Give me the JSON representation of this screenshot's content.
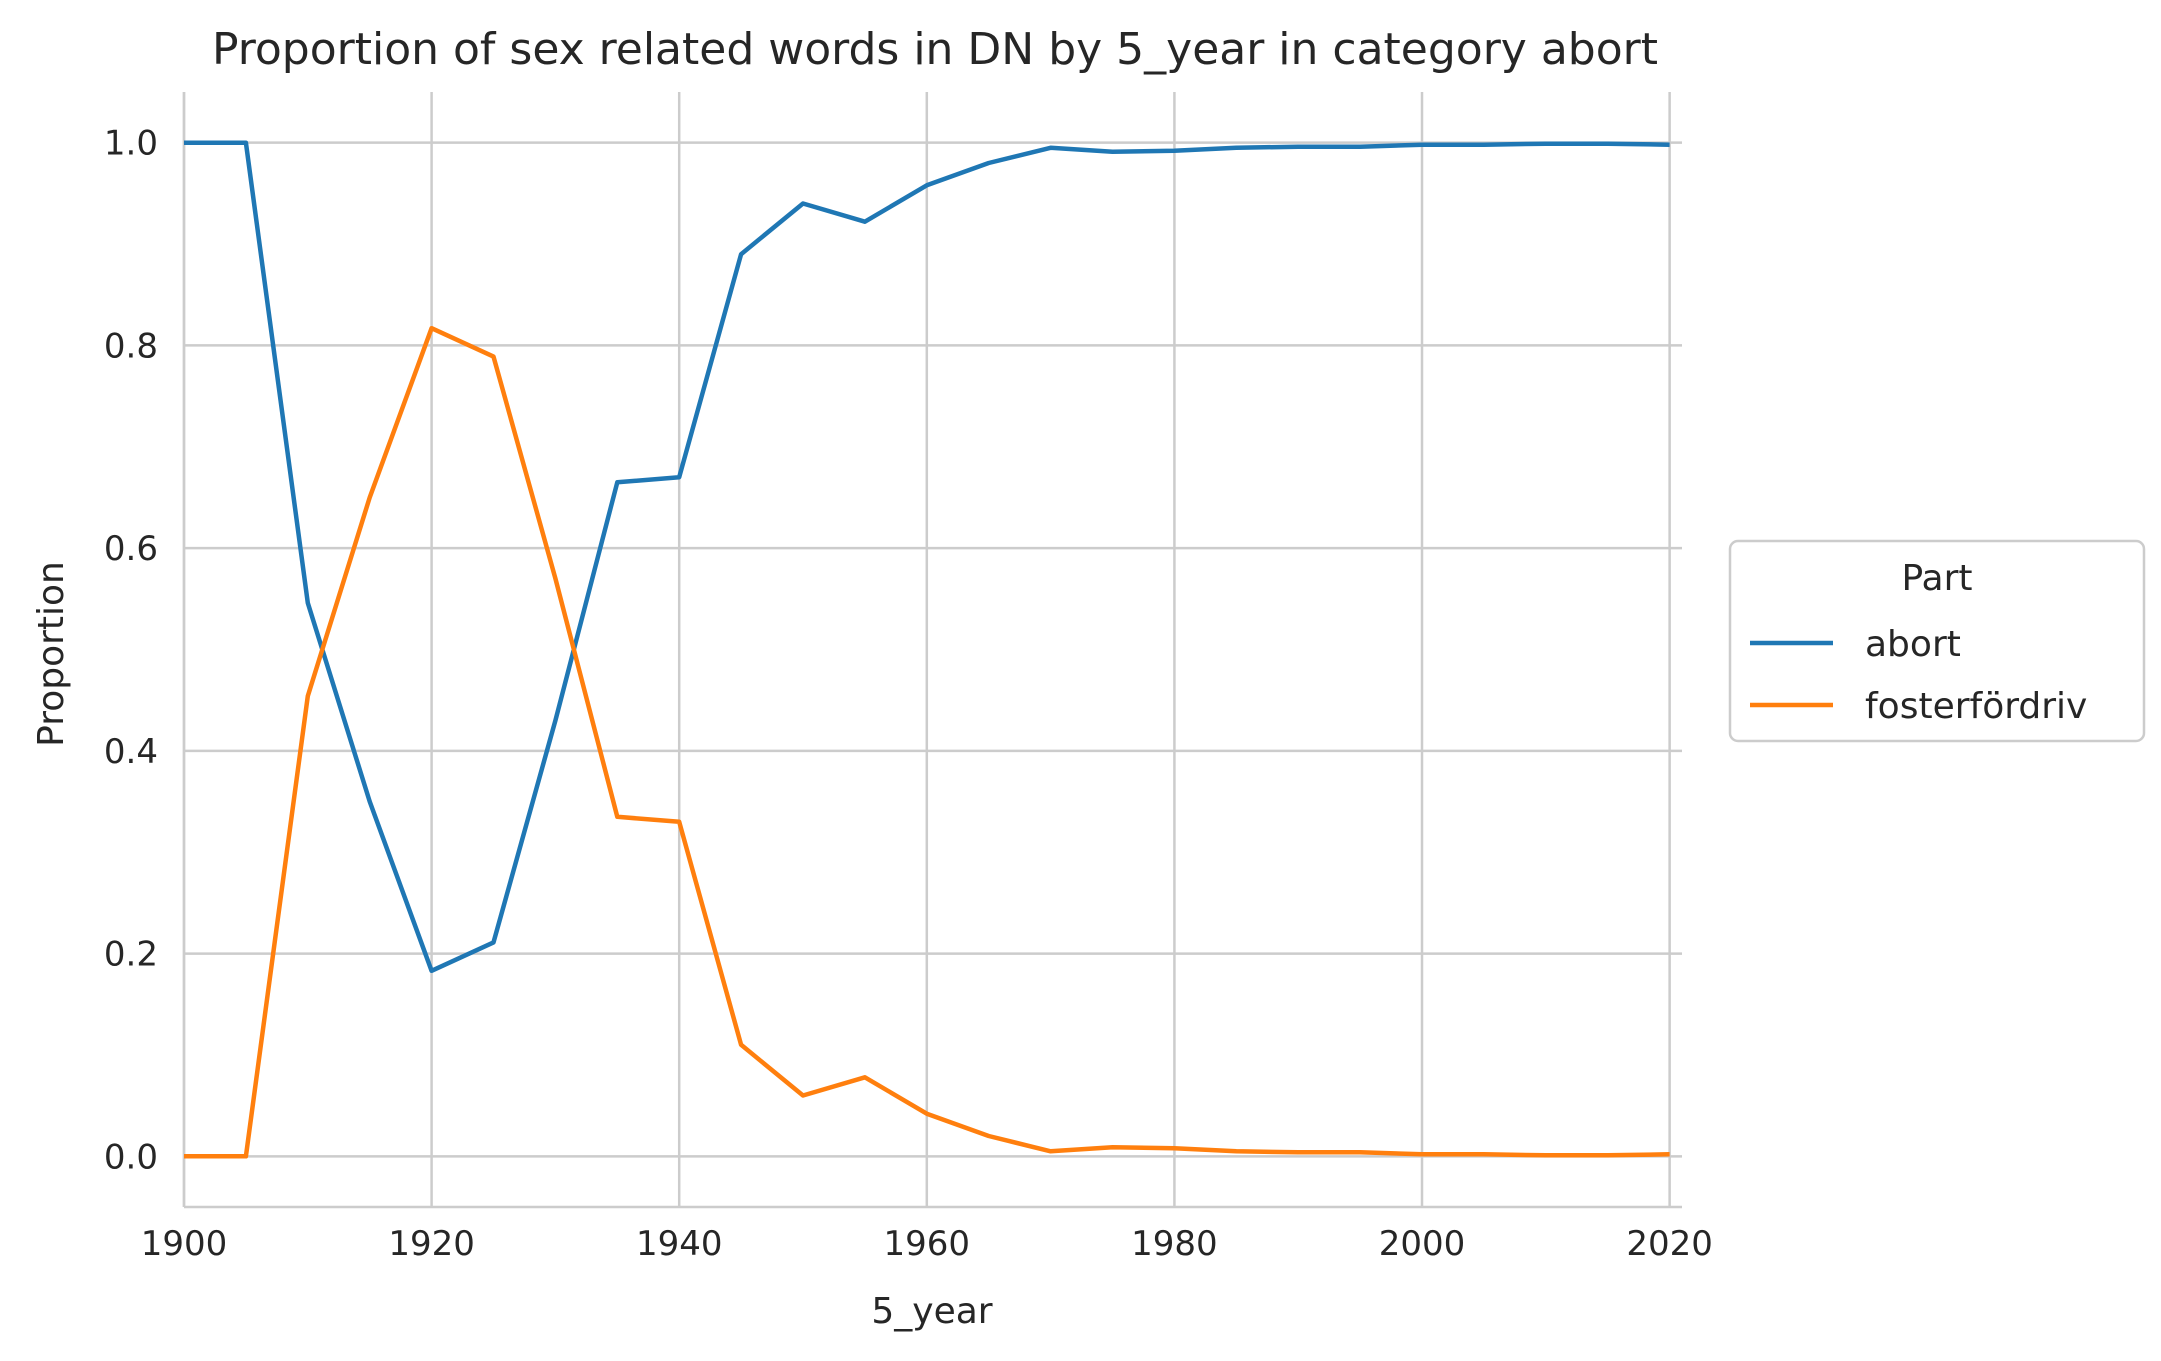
{
  "chart_data": {
    "type": "line",
    "title": "Proportion of sex related words in DN by 5_year in category abort",
    "xlabel": "5_year",
    "ylabel": "Proportion",
    "xlim": [
      1900,
      2021
    ],
    "ylim": [
      -0.05,
      1.05
    ],
    "xticks": [
      1900,
      1920,
      1940,
      1960,
      1980,
      2000,
      2020
    ],
    "xtick_labels": [
      "1900",
      "1920",
      "1940",
      "1960",
      "1980",
      "2000",
      "2020"
    ],
    "yticks": [
      0.0,
      0.2,
      0.4,
      0.6,
      0.8,
      1.0
    ],
    "ytick_labels": [
      "0.0",
      "0.2",
      "0.4",
      "0.6",
      "0.8",
      "1.0"
    ],
    "grid": true,
    "legend": {
      "title": "Part",
      "placement": "outside right"
    },
    "x": [
      1900,
      1905,
      1910,
      1915,
      1920,
      1925,
      1930,
      1935,
      1940,
      1945,
      1950,
      1955,
      1960,
      1965,
      1970,
      1975,
      1980,
      1985,
      1990,
      1995,
      2000,
      2005,
      2010,
      2015,
      2020
    ],
    "series": [
      {
        "name": "abort",
        "color": "#1f77b4",
        "values": [
          1.0,
          1.0,
          0.546,
          0.35,
          0.183,
          0.211,
          0.43,
          0.665,
          0.67,
          0.89,
          0.94,
          0.922,
          0.958,
          0.98,
          0.995,
          0.991,
          0.992,
          0.995,
          0.996,
          0.996,
          0.998,
          0.998,
          0.999,
          0.999,
          0.998
        ]
      },
      {
        "name": "fosterfördriv",
        "color": "#ff7f0e",
        "values": [
          0.0,
          0.0,
          0.454,
          0.65,
          0.817,
          0.789,
          0.57,
          0.335,
          0.33,
          0.11,
          0.06,
          0.078,
          0.042,
          0.02,
          0.005,
          0.009,
          0.008,
          0.005,
          0.004,
          0.004,
          0.002,
          0.002,
          0.001,
          0.001,
          0.002
        ]
      }
    ]
  }
}
